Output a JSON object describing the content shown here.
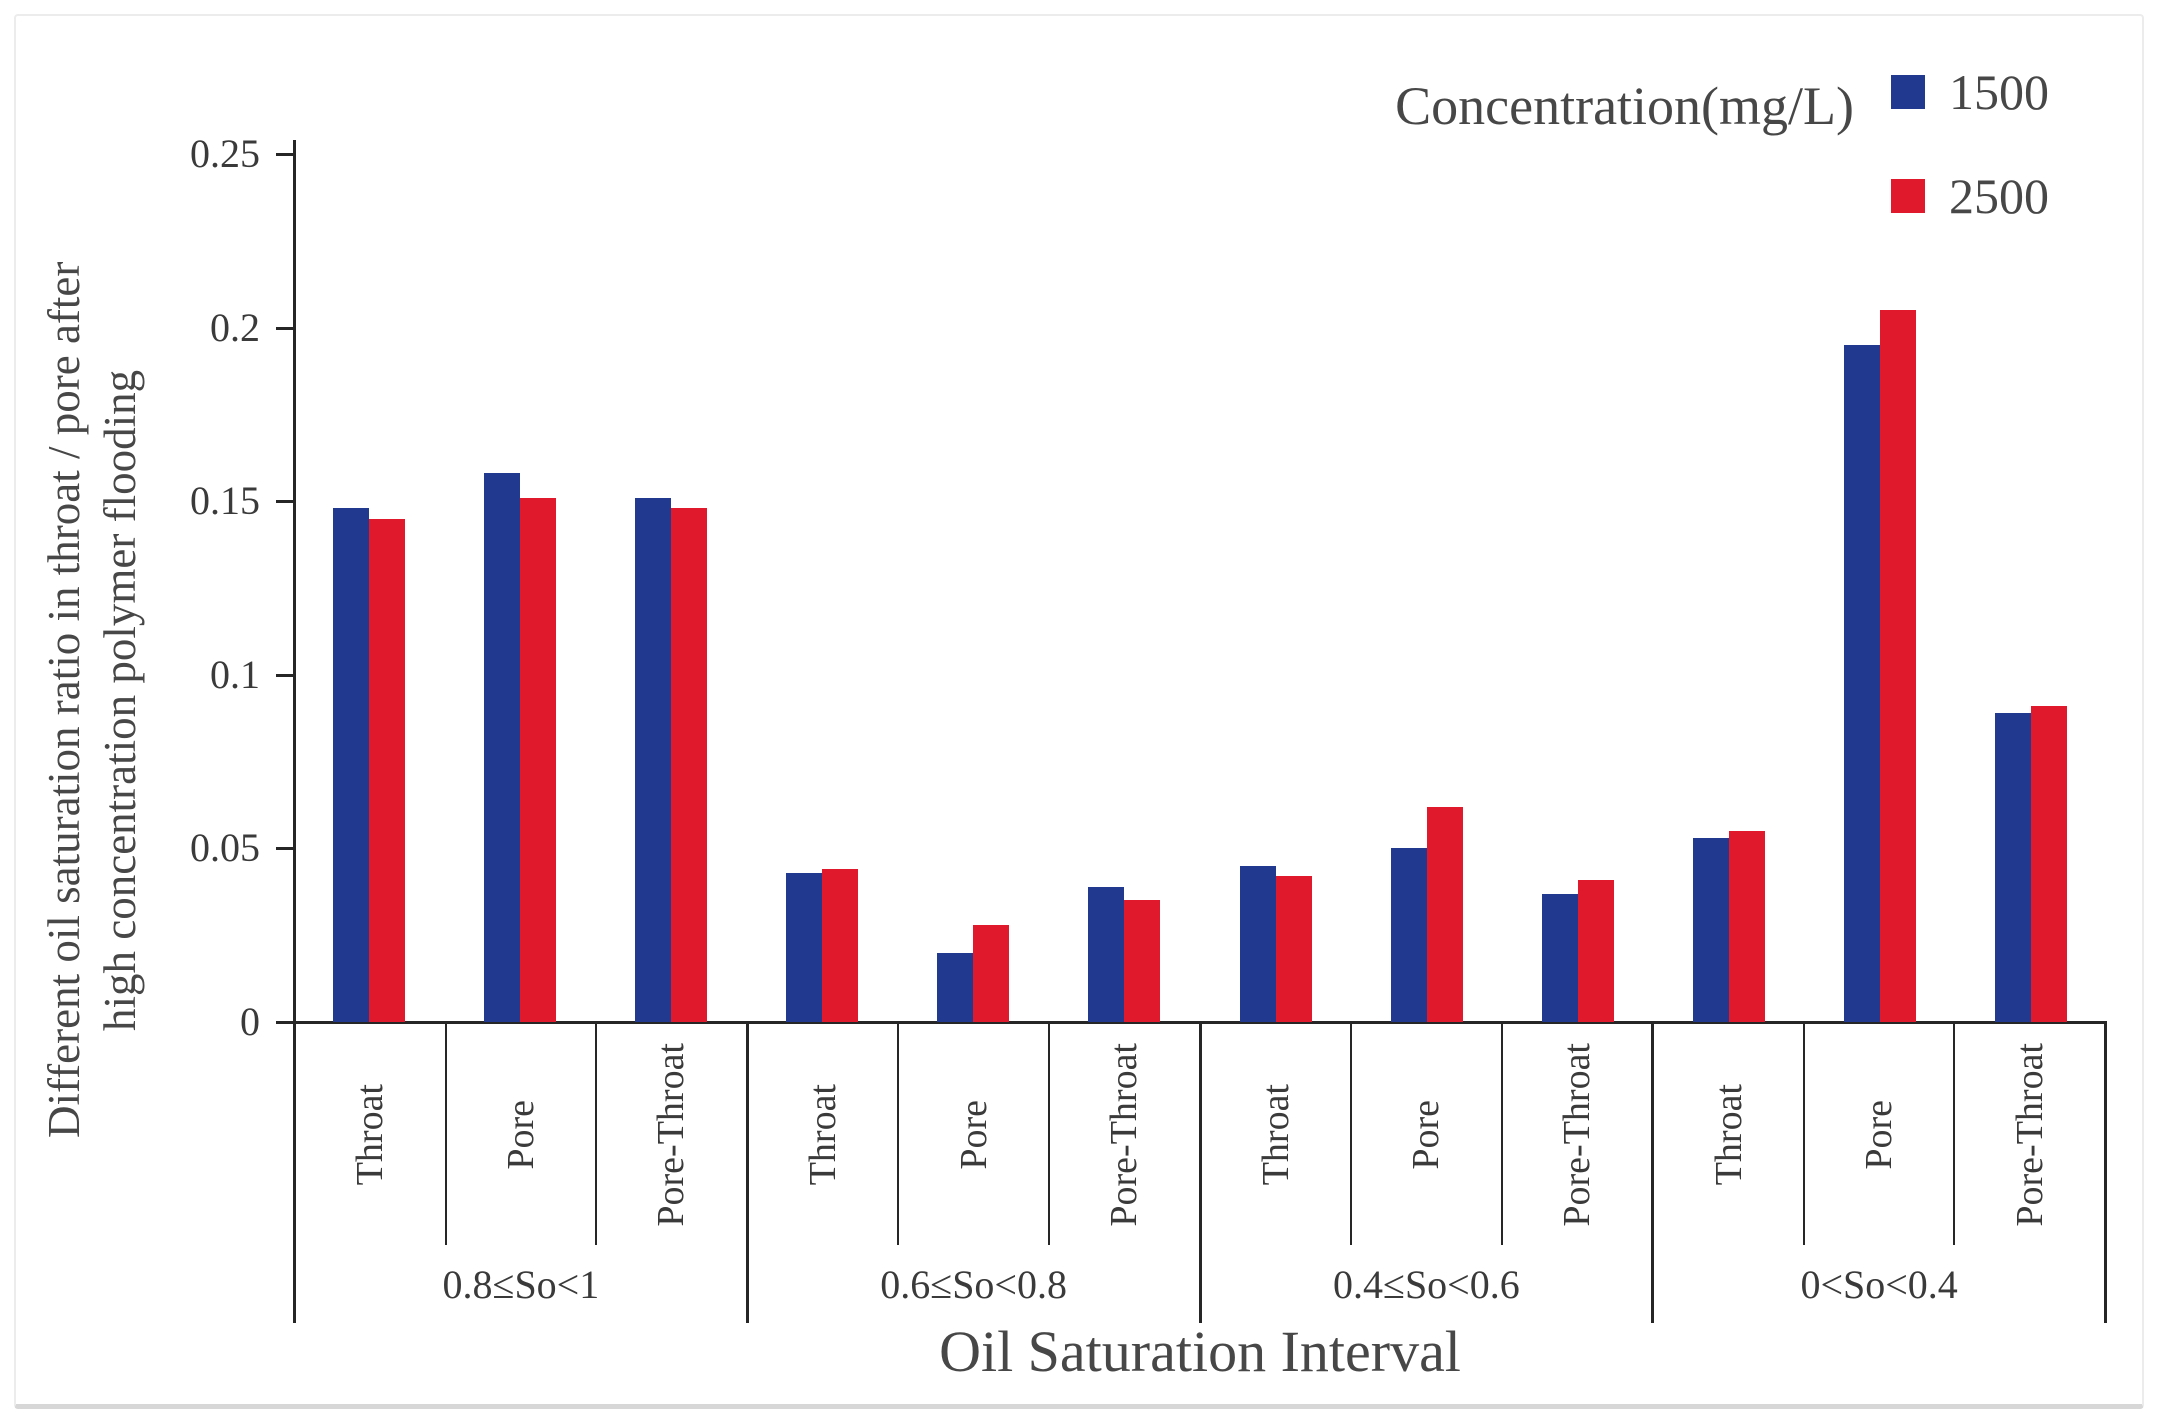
{
  "chart_data": {
    "type": "bar",
    "title": "",
    "xlabel": "Oil Saturation Interval",
    "ylabel": "Different oil saturation ratio in throat / pore after high concentration polymer flooding",
    "ylabel_lines": [
      "Different oil saturation ratio in throat / pore after",
      "high concentration polymer flooding"
    ],
    "ylim": [
      0,
      0.25
    ],
    "ytick_labels": [
      "0",
      "0.05",
      "0.1",
      "0.15",
      "0.2",
      "0.25"
    ],
    "grid": false,
    "legend": {
      "title": "Concentration(mg/L)",
      "position": "top-right",
      "entries": [
        {
          "label": "1500",
          "color": "#21398f"
        },
        {
          "label": "2500",
          "color": "#e0192d"
        }
      ]
    },
    "categories_per_group": [
      "Throat",
      "Pore",
      "Pore-Throat"
    ],
    "series_order": [
      "1500",
      "2500"
    ],
    "groups": [
      {
        "label": "0.8≤So<1",
        "values": {
          "1500": [
            0.148,
            0.158,
            0.151
          ],
          "2500": [
            0.145,
            0.151,
            0.148
          ]
        }
      },
      {
        "label": "0.6≤So<0.8",
        "values": {
          "1500": [
            0.043,
            0.02,
            0.039
          ],
          "2500": [
            0.044,
            0.028,
            0.035
          ]
        }
      },
      {
        "label": "0.4≤So<0.6",
        "values": {
          "1500": [
            0.045,
            0.05,
            0.037
          ],
          "2500": [
            0.042,
            0.062,
            0.041
          ]
        }
      },
      {
        "label": "0<So<0.4",
        "values": {
          "1500": [
            0.053,
            0.195,
            0.089
          ],
          "2500": [
            0.055,
            0.205,
            0.091
          ]
        }
      }
    ]
  }
}
